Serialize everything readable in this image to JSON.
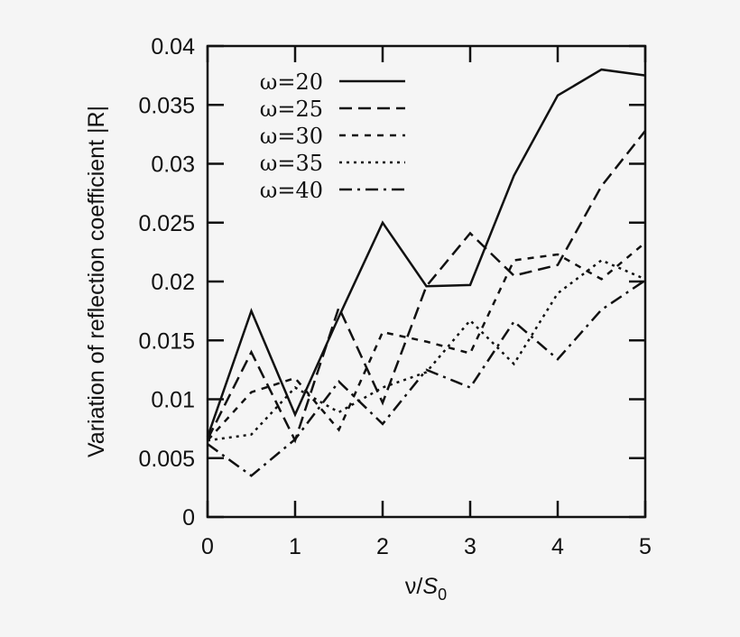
{
  "chart_data": {
    "type": "line",
    "title": "",
    "xlabel": "ν/S₀",
    "xlabel_parts": {
      "main": "ν/",
      "italic": "S",
      "sub": "0"
    },
    "ylabel": "Variation of reflection coefficient |R|",
    "xlim": [
      0,
      5
    ],
    "ylim": [
      0,
      0.04
    ],
    "xticks": [
      0,
      1,
      2,
      3,
      4,
      5
    ],
    "xtick_labels": [
      "0",
      "1",
      "2",
      "3",
      "4",
      "5"
    ],
    "yticks": [
      0,
      0.005,
      0.01,
      0.015,
      0.02,
      0.025,
      0.03,
      0.035,
      0.04
    ],
    "ytick_labels": [
      "0",
      "0.005",
      "0.01",
      "0.015",
      "0.02",
      "0.025",
      "0.03",
      "0.035",
      "0.04"
    ],
    "grid": false,
    "legend_position": "upper left",
    "x": [
      0,
      0.5,
      1,
      1.5,
      2,
      2.5,
      3,
      3.5,
      4,
      4.5,
      5
    ],
    "series": [
      {
        "name": "ω=20",
        "style": "solid",
        "values": [
          0.0068,
          0.0175,
          0.0087,
          0.017,
          0.025,
          0.0196,
          0.0197,
          0.029,
          0.0358,
          0.038,
          0.0375
        ]
      },
      {
        "name": "ω=25",
        "style": "dashed",
        "values": [
          0.0066,
          0.014,
          0.0065,
          0.0178,
          0.0097,
          0.0196,
          0.0241,
          0.0205,
          0.0214,
          0.0281,
          0.0328
        ]
      },
      {
        "name": "ω=30",
        "style": "short-dashed",
        "values": [
          0.0065,
          0.0106,
          0.0118,
          0.0074,
          0.0157,
          0.0149,
          0.0139,
          0.0218,
          0.0223,
          0.0202,
          0.0233
        ]
      },
      {
        "name": "ω=35",
        "style": "dotted",
        "values": [
          0.0065,
          0.007,
          0.011,
          0.0089,
          0.011,
          0.0123,
          0.0167,
          0.013,
          0.019,
          0.0218,
          0.0202
        ]
      },
      {
        "name": "ω=40",
        "style": "dash-dot",
        "values": [
          0.0062,
          0.0035,
          0.0066,
          0.0115,
          0.0079,
          0.0125,
          0.011,
          0.0166,
          0.0134,
          0.0176,
          0.0201
        ]
      }
    ]
  }
}
